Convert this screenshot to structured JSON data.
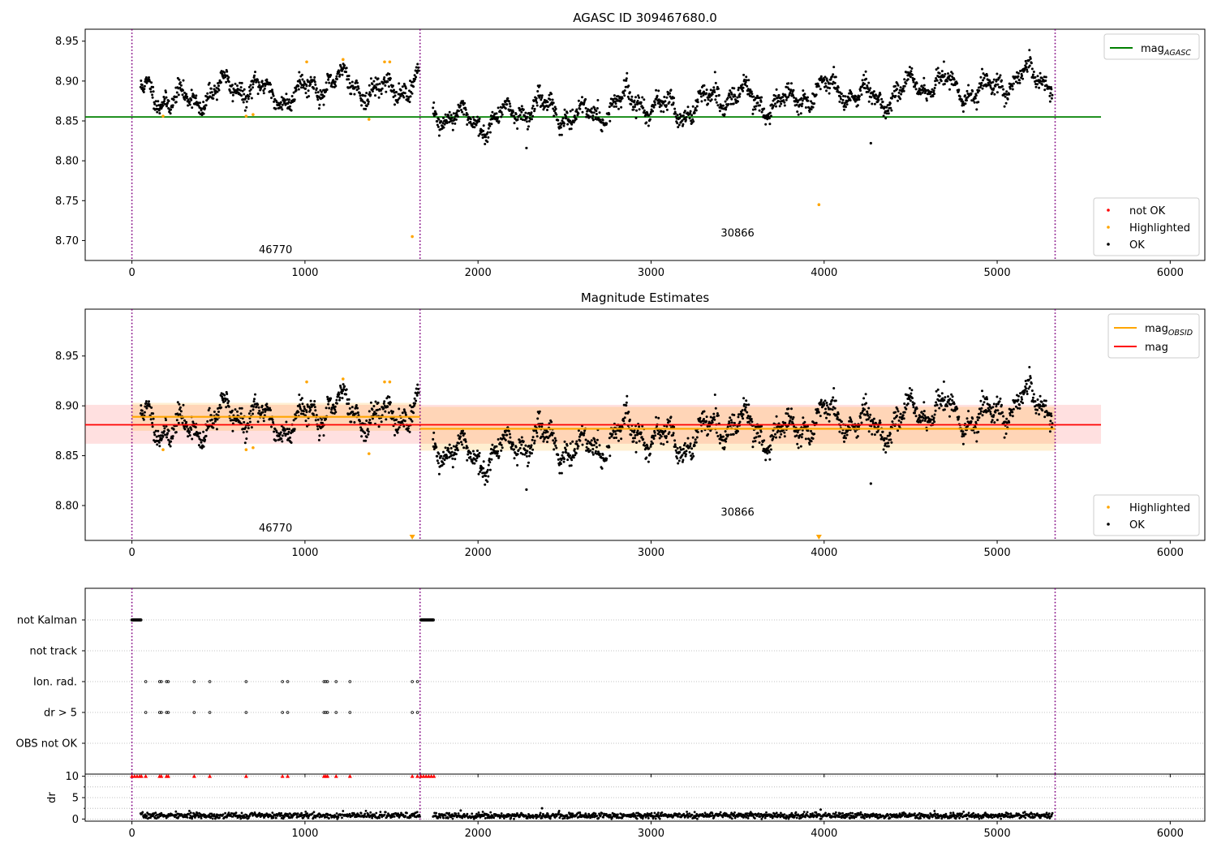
{
  "chart_data": [
    {
      "type": "scatter",
      "title": "AGASC ID 309467680.0",
      "xlim": [
        -270,
        6200
      ],
      "ylim": [
        8.675,
        8.965
      ],
      "xticks": [
        0,
        1000,
        2000,
        3000,
        4000,
        5000,
        6000
      ],
      "yticks": [
        "8.70",
        "8.75",
        "8.80",
        "8.85",
        "8.90",
        "8.95"
      ],
      "ytick_values": [
        8.7,
        8.75,
        8.8,
        8.85,
        8.9,
        8.95
      ],
      "obs_boundaries": [
        0,
        1665,
        5335
      ],
      "obs_labels": [
        {
          "text": "46770",
          "x": 830,
          "y": 8.684
        },
        {
          "text": "30866",
          "x": 3500,
          "y": 8.705
        }
      ],
      "reference_line": {
        "name": "mag",
        "sub": "AGASC",
        "y": 8.855,
        "x0": -270,
        "x1": 5600,
        "color": "#008000"
      },
      "segments": [
        {
          "x0": 50,
          "x1": 1660,
          "base": 8.88,
          "slope": 0.017
        },
        {
          "x0": 1740,
          "x1": 5320,
          "base": 8.852,
          "slope": 0.048
        }
      ],
      "highlighted": [
        {
          "x": 180,
          "y": 8.856
        },
        {
          "x": 660,
          "y": 8.856
        },
        {
          "x": 700,
          "y": 8.858
        },
        {
          "x": 1010,
          "y": 8.924
        },
        {
          "x": 1220,
          "y": 8.927
        },
        {
          "x": 1370,
          "y": 8.852
        },
        {
          "x": 1460,
          "y": 8.924
        },
        {
          "x": 1490,
          "y": 8.924
        },
        {
          "x": 1620,
          "y": 8.705
        },
        {
          "x": 3970,
          "y": 8.745
        }
      ],
      "ok_outliers": [
        {
          "x": 2280,
          "y": 8.816
        },
        {
          "x": 4270,
          "y": 8.822
        }
      ],
      "legend_lines": [
        {
          "label_main": "mag",
          "label_sub": "AGASC",
          "color": "#008000"
        }
      ],
      "legend_points": [
        {
          "label": "not OK",
          "color": "#ff0000"
        },
        {
          "label": "Highlighted",
          "color": "#ffa500"
        },
        {
          "label": "OK",
          "color": "#000000"
        }
      ]
    },
    {
      "type": "scatter",
      "title": "Magnitude Estimates",
      "xlim": [
        -270,
        6200
      ],
      "ylim": [
        8.765,
        8.997
      ],
      "xticks": [
        0,
        1000,
        2000,
        3000,
        4000,
        5000,
        6000
      ],
      "yticks": [
        "8.80",
        "8.85",
        "8.90",
        "8.95"
      ],
      "ytick_values": [
        8.8,
        8.85,
        8.9,
        8.95
      ],
      "obs_boundaries": [
        0,
        1665,
        5335
      ],
      "obs_labels": [
        {
          "text": "46770",
          "x": 830,
          "y": 8.774
        },
        {
          "text": "30866",
          "x": 3500,
          "y": 8.79
        }
      ],
      "mag_line": {
        "y": 8.881,
        "band": [
          8.862,
          8.901
        ],
        "x0": -270,
        "x1": 5600,
        "color": "#ff0000"
      },
      "obsid_lines": [
        {
          "x0": 0,
          "x1": 1665,
          "y": 8.889,
          "band": [
            8.875,
            8.903
          ]
        },
        {
          "x0": 1665,
          "x1": 5335,
          "y": 8.877,
          "band": [
            8.855,
            8.899
          ]
        }
      ],
      "highlighted": [
        {
          "x": 180,
          "y": 8.856
        },
        {
          "x": 660,
          "y": 8.856
        },
        {
          "x": 700,
          "y": 8.858
        },
        {
          "x": 1010,
          "y": 8.924
        },
        {
          "x": 1220,
          "y": 8.927
        },
        {
          "x": 1370,
          "y": 8.852
        },
        {
          "x": 1460,
          "y": 8.924
        },
        {
          "x": 1490,
          "y": 8.924
        }
      ],
      "offscale_markers": [
        {
          "x": 1620
        },
        {
          "x": 3970
        }
      ],
      "ok_outliers": [
        {
          "x": 2280,
          "y": 8.816
        },
        {
          "x": 4270,
          "y": 8.822
        }
      ],
      "legend_lines": [
        {
          "label_main": "mag",
          "label_sub": "OBSID",
          "color": "#ffa500"
        },
        {
          "label_main": "mag",
          "label_sub": "",
          "color": "#ff0000"
        }
      ],
      "legend_points": [
        {
          "label": "Highlighted",
          "color": "#ffa500"
        },
        {
          "label": "OK",
          "color": "#000000"
        }
      ]
    },
    {
      "type": "scatter",
      "title": "",
      "xlim": [
        -270,
        6200
      ],
      "categories": [
        "not Kalman",
        "not track",
        "Ion. rad.",
        "dr > 5",
        "OBS not OK"
      ],
      "obs_boundaries": [
        0,
        1665,
        5335
      ],
      "flag_ranges": [
        {
          "category": "not Kalman",
          "x0": 0,
          "x1": 55
        },
        {
          "category": "not Kalman",
          "x0": 1670,
          "x1": 1745
        }
      ],
      "flag_points": [
        {
          "category": "Ion. rad.",
          "xs": [
            80,
            160,
            170,
            200,
            210,
            360,
            450,
            660,
            870,
            900,
            1110,
            1120,
            1130,
            1180,
            1260,
            1620,
            1650
          ]
        },
        {
          "category": "dr > 5",
          "xs": [
            80,
            160,
            170,
            200,
            210,
            360,
            450,
            660,
            870,
            900,
            1110,
            1120,
            1130,
            1180,
            1260,
            1620,
            1650
          ]
        }
      ]
    },
    {
      "type": "scatter",
      "title": "",
      "ylabel": "dr",
      "xlim": [
        -270,
        6200
      ],
      "ylim": [
        -0.5,
        10.5
      ],
      "xticks": [
        0,
        1000,
        2000,
        3000,
        4000,
        5000,
        6000
      ],
      "yticks": [
        "0",
        "5",
        "10"
      ],
      "ytick_values": [
        0,
        5,
        10
      ],
      "obs_boundaries": [
        0,
        1665,
        5335
      ],
      "dr_segments": [
        {
          "x0": 50,
          "x1": 1665
        },
        {
          "x0": 1740,
          "x1": 5320
        }
      ],
      "dr_outliers": [
        {
          "x": 2370,
          "y": 2.5
        },
        {
          "x": 3980,
          "y": 2.2
        },
        {
          "x": 1900,
          "y": 2.0
        }
      ],
      "capped_points": {
        "y": 10,
        "xs": [
          0,
          15,
          30,
          45,
          55,
          80,
          160,
          170,
          200,
          210,
          360,
          450,
          660,
          870,
          900,
          1110,
          1120,
          1130,
          1180,
          1260,
          1620,
          1650,
          1670,
          1685,
          1700,
          1715,
          1730,
          1745
        ]
      }
    }
  ]
}
